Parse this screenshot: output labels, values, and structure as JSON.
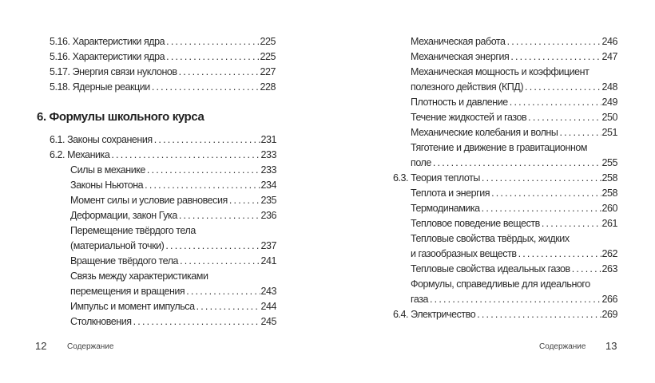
{
  "left_page": {
    "top_entries": [
      {
        "level": 1,
        "lines": [
          "5.16. Характеристики ядра"
        ],
        "page": "225"
      },
      {
        "level": 1,
        "lines": [
          "5.16.  Характеристики  ядра"
        ],
        "page": "225"
      },
      {
        "level": 1,
        "lines": [
          "5.17. Энергия связи нуклонов"
        ],
        "page": "227"
      },
      {
        "level": 1,
        "lines": [
          "5.18. Ядерные реакции"
        ],
        "page": "228"
      }
    ],
    "heading": "6. Формулы школьного курса",
    "entries": [
      {
        "level": 1,
        "lines": [
          "6.1. Законы сохранения"
        ],
        "page": "231"
      },
      {
        "level": 1,
        "lines": [
          "6.2. Механика"
        ],
        "page": "233"
      },
      {
        "level": 2,
        "lines": [
          "Силы в механике"
        ],
        "page": "233"
      },
      {
        "level": 2,
        "lines": [
          "Законы Ньютона"
        ],
        "page": "234"
      },
      {
        "level": 2,
        "lines": [
          "Момент силы и условие равновесия"
        ],
        "page": "235"
      },
      {
        "level": 2,
        "lines": [
          "Деформации, закон Гука"
        ],
        "page": "236"
      },
      {
        "level": 2,
        "lines": [
          "Перемещение твёрдого тела",
          "(материальной точки)"
        ],
        "page": "237"
      },
      {
        "level": 2,
        "lines": [
          "Вращение твёрдого тела"
        ],
        "page": "241"
      },
      {
        "level": 2,
        "lines": [
          "Связь между характеристиками",
          "перемещения и вращения"
        ],
        "page": "243"
      },
      {
        "level": 2,
        "lines": [
          "Импульс и момент импульса"
        ],
        "page": "244"
      },
      {
        "level": 2,
        "lines": [
          "Столкновения"
        ],
        "page": "245"
      }
    ],
    "footer": {
      "number": "12",
      "title": "Содержание"
    }
  },
  "right_page": {
    "entries": [
      {
        "level": 2,
        "lines": [
          "Механическая работа"
        ],
        "page": "246"
      },
      {
        "level": 2,
        "lines": [
          "Механическая энергия"
        ],
        "page": "247"
      },
      {
        "level": 2,
        "lines": [
          "Механическая мощность и коэффициент",
          "полезного действия (КПД)"
        ],
        "page": "248"
      },
      {
        "level": 2,
        "lines": [
          "Плотность и давление"
        ],
        "page": "249"
      },
      {
        "level": 2,
        "lines": [
          "Течение жидкостей и газов"
        ],
        "page": "250"
      },
      {
        "level": 2,
        "lines": [
          "Механические колебания и волны"
        ],
        "page": "251"
      },
      {
        "level": 2,
        "lines": [
          "Тяготение и движение в гравитационном",
          "поле"
        ],
        "page": "255"
      },
      {
        "level": 1,
        "lines": [
          "6.3. Теория теплоты"
        ],
        "page": "258"
      },
      {
        "level": 2,
        "lines": [
          "Теплота и энергия"
        ],
        "page": "258"
      },
      {
        "level": 2,
        "lines": [
          "Термодинамика"
        ],
        "page": "260"
      },
      {
        "level": 2,
        "lines": [
          "Тепловое поведение веществ"
        ],
        "page": "261"
      },
      {
        "level": 2,
        "lines": [
          "Тепловые свойства твёрдых, жидких",
          "и газообразных веществ"
        ],
        "page": "262"
      },
      {
        "level": 2,
        "lines": [
          "Тепловые свойства идеальных газов"
        ],
        "page": "263"
      },
      {
        "level": 2,
        "lines": [
          "Формулы, справедливые для идеального",
          "газа"
        ],
        "page": "266"
      },
      {
        "level": 1,
        "lines": [
          "6.4. Электричество"
        ],
        "page": "269"
      }
    ],
    "footer": {
      "number": "13",
      "title": "Содержание"
    }
  }
}
